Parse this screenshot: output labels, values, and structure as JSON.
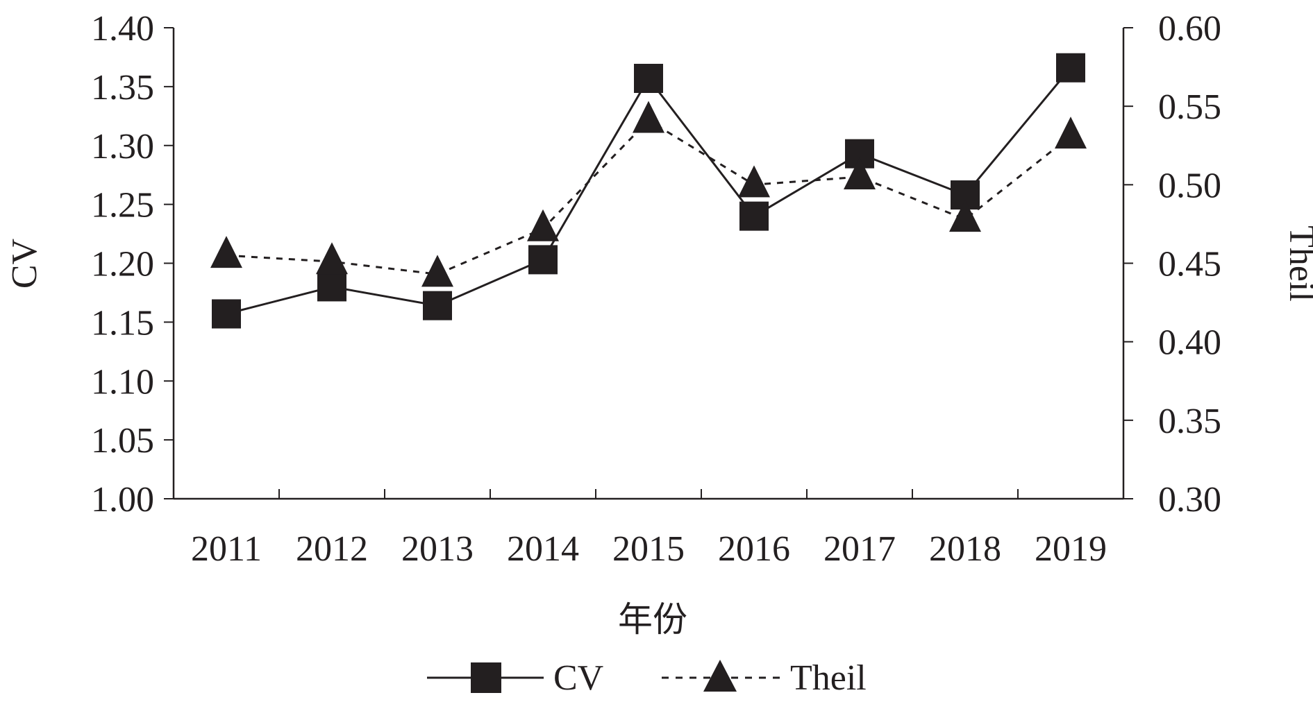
{
  "chart_data": {
    "type": "line",
    "xlabel": "年份",
    "ylabel": "CV",
    "y2label": "Theil",
    "categories": [
      "2011",
      "2012",
      "2013",
      "2014",
      "2015",
      "2016",
      "2017",
      "2018",
      "2019"
    ],
    "ylim": [
      1.0,
      1.4
    ],
    "y2lim": [
      0.3,
      0.6
    ],
    "yticks": [
      "1.00",
      "1.05",
      "1.10",
      "1.15",
      "1.20",
      "1.25",
      "1.30",
      "1.35",
      "1.40"
    ],
    "y2ticks": [
      "0.30",
      "0.35",
      "0.40",
      "0.45",
      "0.50",
      "0.55",
      "0.60"
    ],
    "series": [
      {
        "name": "CV",
        "axis": "left",
        "marker": "square",
        "line_style": "solid",
        "values": [
          1.157,
          1.18,
          1.164,
          1.203,
          1.357,
          1.24,
          1.293,
          1.258,
          1.366
        ]
      },
      {
        "name": "Theil",
        "axis": "right",
        "marker": "triangle",
        "line_style": "dashed",
        "values": [
          0.455,
          0.451,
          0.443,
          0.472,
          0.541,
          0.5,
          0.505,
          0.478,
          0.531
        ]
      }
    ],
    "grid": false,
    "legend_position": "bottom",
    "color": "#231f20"
  }
}
